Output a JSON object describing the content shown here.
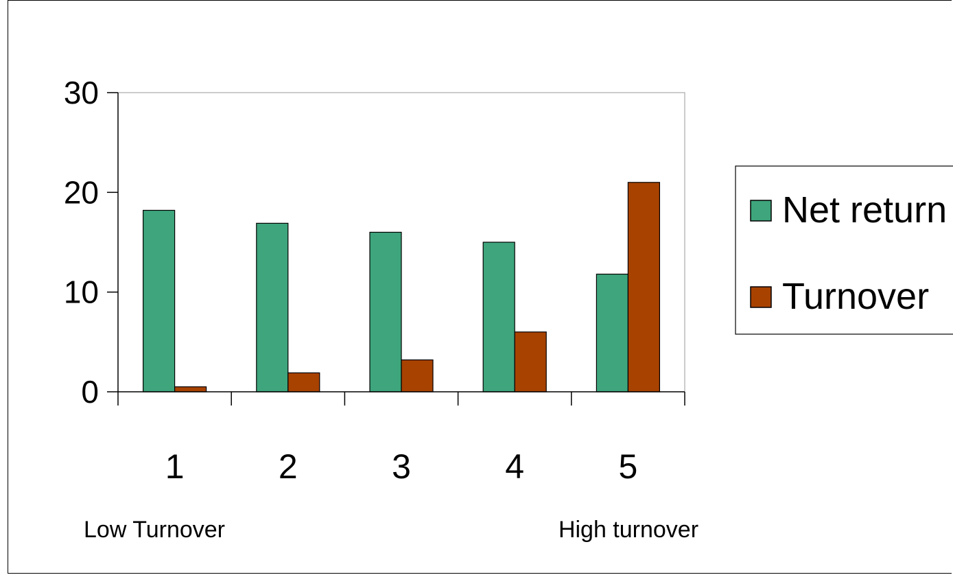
{
  "chart_data": {
    "type": "bar",
    "categories": [
      "1",
      "2",
      "3",
      "4",
      "5"
    ],
    "series": [
      {
        "name": "Net return",
        "values": [
          18.2,
          16.9,
          16.0,
          15.0,
          11.8
        ],
        "color": "#3ea57c"
      },
      {
        "name": "Turnover",
        "values": [
          0.5,
          1.9,
          3.2,
          6.0,
          21.0
        ],
        "color": "#a84200"
      }
    ],
    "title": "",
    "xlabel": "",
    "ylabel": "",
    "ylim": [
      0,
      30
    ],
    "yticks": [
      0,
      10,
      20,
      30
    ],
    "grid": false,
    "legend": "right",
    "annotations": {
      "left": "Low Turnover",
      "right": "High turnover"
    }
  }
}
